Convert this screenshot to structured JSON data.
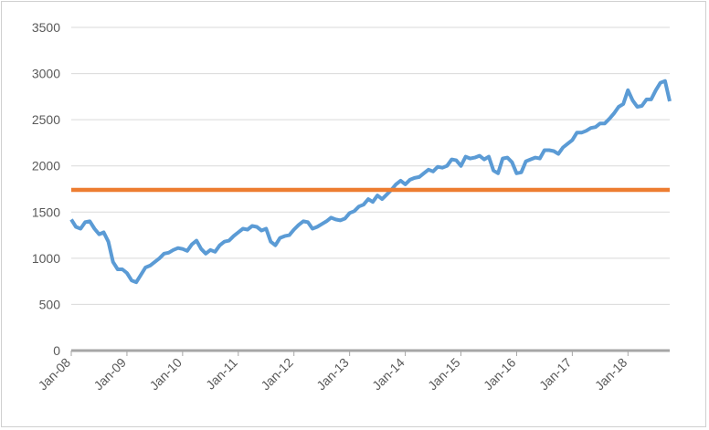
{
  "chart_data": {
    "type": "line",
    "title": "",
    "xlabel": "",
    "ylabel": "",
    "ylim": [
      0,
      3500
    ],
    "yticks": [
      0,
      500,
      1000,
      1500,
      2000,
      2500,
      3000,
      3500
    ],
    "yticklabels": [
      "0",
      "500",
      "1000",
      "1500",
      "2000",
      "2500",
      "3000",
      "3500"
    ],
    "xlim": [
      "2008-01",
      "2018-10"
    ],
    "xticks": [
      "2008-01",
      "2009-01",
      "2010-01",
      "2011-01",
      "2012-01",
      "2013-01",
      "2014-01",
      "2015-01",
      "2016-01",
      "2017-01",
      "2018-01"
    ],
    "xticklabels": [
      "Jan-08",
      "Jan-09",
      "Jan-10",
      "Jan-11",
      "Jan-12",
      "Jan-13",
      "Jan-14",
      "Jan-15",
      "Jan-16",
      "Jan-17",
      "Jan-18"
    ],
    "grid": true,
    "legend": "none",
    "series": [
      {
        "color": "#5b9bd5",
        "x": [
          "2008-01",
          "2008-02",
          "2008-03",
          "2008-04",
          "2008-05",
          "2008-06",
          "2008-07",
          "2008-08",
          "2008-09",
          "2008-10",
          "2008-11",
          "2008-12",
          "2009-01",
          "2009-02",
          "2009-03",
          "2009-04",
          "2009-05",
          "2009-06",
          "2009-07",
          "2009-08",
          "2009-09",
          "2009-10",
          "2009-11",
          "2009-12",
          "2010-01",
          "2010-02",
          "2010-03",
          "2010-04",
          "2010-05",
          "2010-06",
          "2010-07",
          "2010-08",
          "2010-09",
          "2010-10",
          "2010-11",
          "2010-12",
          "2011-01",
          "2011-02",
          "2011-03",
          "2011-04",
          "2011-05",
          "2011-06",
          "2011-07",
          "2011-08",
          "2011-09",
          "2011-10",
          "2011-11",
          "2011-12",
          "2012-01",
          "2012-02",
          "2012-03",
          "2012-04",
          "2012-05",
          "2012-06",
          "2012-07",
          "2012-08",
          "2012-09",
          "2012-10",
          "2012-11",
          "2012-12",
          "2013-01",
          "2013-02",
          "2013-03",
          "2013-04",
          "2013-05",
          "2013-06",
          "2013-07",
          "2013-08",
          "2013-09",
          "2013-10",
          "2013-11",
          "2013-12",
          "2014-01",
          "2014-02",
          "2014-03",
          "2014-04",
          "2014-05",
          "2014-06",
          "2014-07",
          "2014-08",
          "2014-09",
          "2014-10",
          "2014-11",
          "2014-12",
          "2015-01",
          "2015-02",
          "2015-03",
          "2015-04",
          "2015-05",
          "2015-06",
          "2015-07",
          "2015-08",
          "2015-09",
          "2015-10",
          "2015-11",
          "2015-12",
          "2016-01",
          "2016-02",
          "2016-03",
          "2016-04",
          "2016-05",
          "2016-06",
          "2016-07",
          "2016-08",
          "2016-09",
          "2016-10",
          "2016-11",
          "2016-12",
          "2017-01",
          "2017-02",
          "2017-03",
          "2017-04",
          "2017-05",
          "2017-06",
          "2017-07",
          "2017-08",
          "2017-09",
          "2017-10",
          "2017-11",
          "2017-12",
          "2018-01",
          "2018-02",
          "2018-03",
          "2018-04",
          "2018-05",
          "2018-06",
          "2018-07",
          "2018-08",
          "2018-09",
          "2018-10"
        ],
        "values": [
          1420,
          1340,
          1320,
          1390,
          1400,
          1320,
          1260,
          1280,
          1180,
          960,
          880,
          880,
          840,
          760,
          740,
          820,
          900,
          920,
          960,
          1000,
          1050,
          1060,
          1090,
          1110,
          1100,
          1080,
          1150,
          1190,
          1100,
          1050,
          1090,
          1070,
          1140,
          1180,
          1190,
          1240,
          1280,
          1320,
          1310,
          1350,
          1340,
          1300,
          1320,
          1180,
          1140,
          1220,
          1240,
          1250,
          1310,
          1360,
          1400,
          1390,
          1320,
          1340,
          1370,
          1400,
          1440,
          1420,
          1410,
          1430,
          1490,
          1510,
          1560,
          1580,
          1640,
          1610,
          1680,
          1640,
          1690,
          1740,
          1800,
          1840,
          1800,
          1850,
          1870,
          1880,
          1920,
          1960,
          1940,
          1990,
          1980,
          2000,
          2070,
          2060,
          2000,
          2100,
          2080,
          2090,
          2110,
          2070,
          2100,
          1950,
          1920,
          2080,
          2090,
          2040,
          1920,
          1930,
          2050,
          2070,
          2090,
          2080,
          2170,
          2170,
          2160,
          2130,
          2200,
          2240,
          2280,
          2360,
          2360,
          2380,
          2410,
          2420,
          2460,
          2460,
          2510,
          2570,
          2640,
          2670,
          2820,
          2710,
          2640,
          2650,
          2720,
          2720,
          2820,
          2900,
          2920,
          2700
        ]
      },
      {
        "color": "#ed7d31",
        "x": [
          "2008-01",
          "2018-10"
        ],
        "values": [
          1740,
          1740
        ]
      }
    ]
  }
}
